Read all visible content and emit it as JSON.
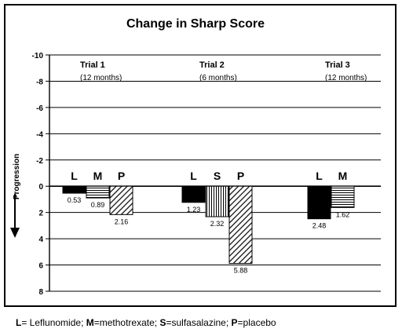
{
  "chart_data": {
    "type": "bar",
    "title": "Change in Sharp Score",
    "ylabel": "Progression",
    "ylim": [
      -10,
      8
    ],
    "yticks": [
      -10,
      -8,
      -6,
      -4,
      -2,
      0,
      2,
      4,
      6,
      8
    ],
    "y_inverted": true,
    "grid": true,
    "groups": [
      {
        "name": "Trial 1",
        "subtitle": "(12 months)",
        "bars": [
          {
            "label": "L",
            "value": 0.53,
            "value_label": "0.53",
            "pattern": "solid"
          },
          {
            "label": "M",
            "value": 0.89,
            "value_label": "0.89",
            "pattern": "hlines"
          },
          {
            "label": "P",
            "value": 2.16,
            "value_label": "2.16",
            "pattern": "diag"
          }
        ]
      },
      {
        "name": "Trial 2",
        "subtitle": "(6 months)",
        "bars": [
          {
            "label": "L",
            "value": 1.23,
            "value_label": "1.23",
            "pattern": "solid"
          },
          {
            "label": "S",
            "value": 2.32,
            "value_label": "2.32",
            "pattern": "vlines"
          },
          {
            "label": "P",
            "value": 5.88,
            "value_label": "5.88",
            "pattern": "diag"
          }
        ]
      },
      {
        "name": "Trial 3",
        "subtitle": "(12 months)",
        "bars": [
          {
            "label": "L",
            "value": 2.48,
            "value_label": "2.48",
            "pattern": "solid"
          },
          {
            "label": "M",
            "value": 1.62,
            "value_label": "1.62",
            "pattern": "hlines"
          }
        ]
      }
    ]
  },
  "footnote": {
    "items": [
      {
        "abbr": "L",
        "text": "= Leflunomide; "
      },
      {
        "abbr": "M",
        "text": "=methotrexate; "
      },
      {
        "abbr": "S",
        "text": "=sulfasalazine; "
      },
      {
        "abbr": "P",
        "text": "=placebo"
      }
    ]
  }
}
